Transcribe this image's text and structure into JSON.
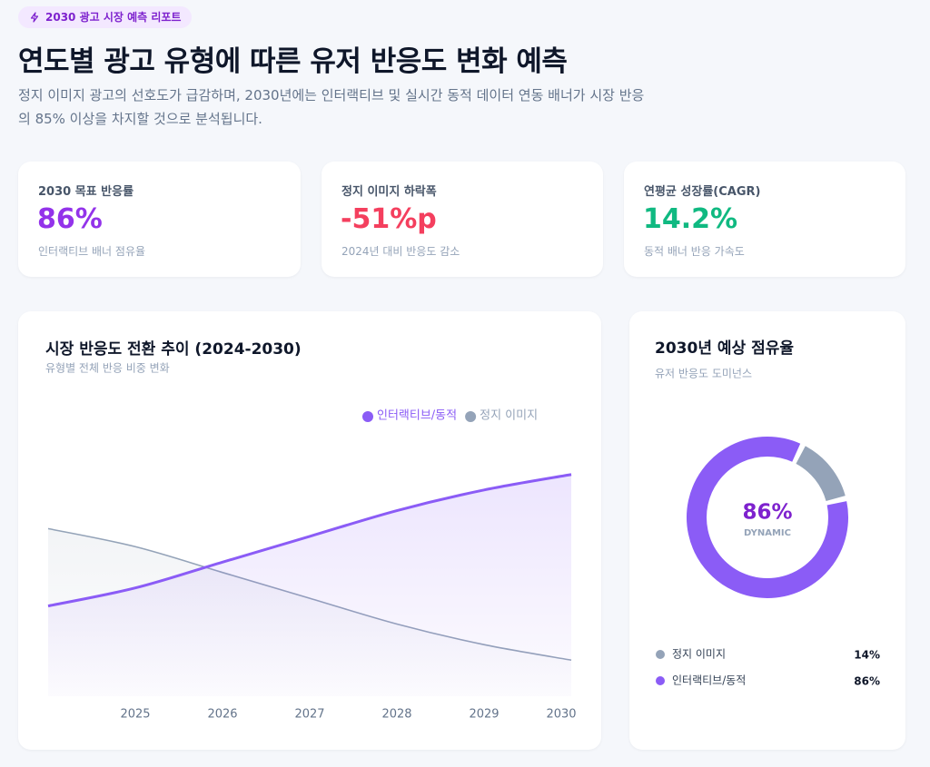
{
  "header": {
    "badge": "2030 광고 시장 예측 리포트",
    "title": "연도별 광고 유형에 따른 유저 반응도 변화 예측",
    "description": "정지 이미지 광고의 선호도가 급감하며, 2030년에는 인터랙티브 및 실시간 동적 데이터 연동 배너가 시장 반응의 85% 이상을 차지할 것으로 분석됩니다."
  },
  "kpis": [
    {
      "label": "2030 목표 반응률",
      "value": "86%",
      "note": "인터랙티브 배너 점유율",
      "color": "#9333ea"
    },
    {
      "label": "정지 이미지 하락폭",
      "value": "-51%p",
      "note": "2024년 대비 반응도 감소",
      "color": "#f43f5e"
    },
    {
      "label": "연평균 성장률(CAGR)",
      "value": "14.2%",
      "note": "동적 배너 반응 가속도",
      "color": "#10b981"
    }
  ],
  "chart_data": [
    {
      "type": "area",
      "title": "시장 반응도 전환 추이 (2024-2030)",
      "subtitle": "유형별 전체 반응 비중 변화",
      "categories": [
        null,
        "2025",
        "2026",
        "2027",
        "2028",
        "2029",
        "2030"
      ],
      "series": [
        {
          "name": "인터랙티브/동적",
          "color": "#8b5cf6",
          "values": [
            35,
            42,
            52,
            62,
            72,
            80,
            86
          ]
        },
        {
          "name": "정지 이미지",
          "color": "#94a3b8",
          "values": [
            65,
            58,
            48,
            38,
            28,
            20,
            14
          ]
        }
      ],
      "ylim": [
        0,
        100
      ],
      "legend": "top-right"
    },
    {
      "type": "donut",
      "title": "2030년 예상 점유율",
      "subtitle": "유저 반응도 도미넌스",
      "categories": [
        "정지 이미지",
        "인터랙티브/동적"
      ],
      "values": [
        14,
        86
      ],
      "value_labels": [
        "14%",
        "86%"
      ],
      "colors": [
        "#94a3b8",
        "#8b5cf6"
      ],
      "center_label": "DYNAMIC"
    }
  ]
}
